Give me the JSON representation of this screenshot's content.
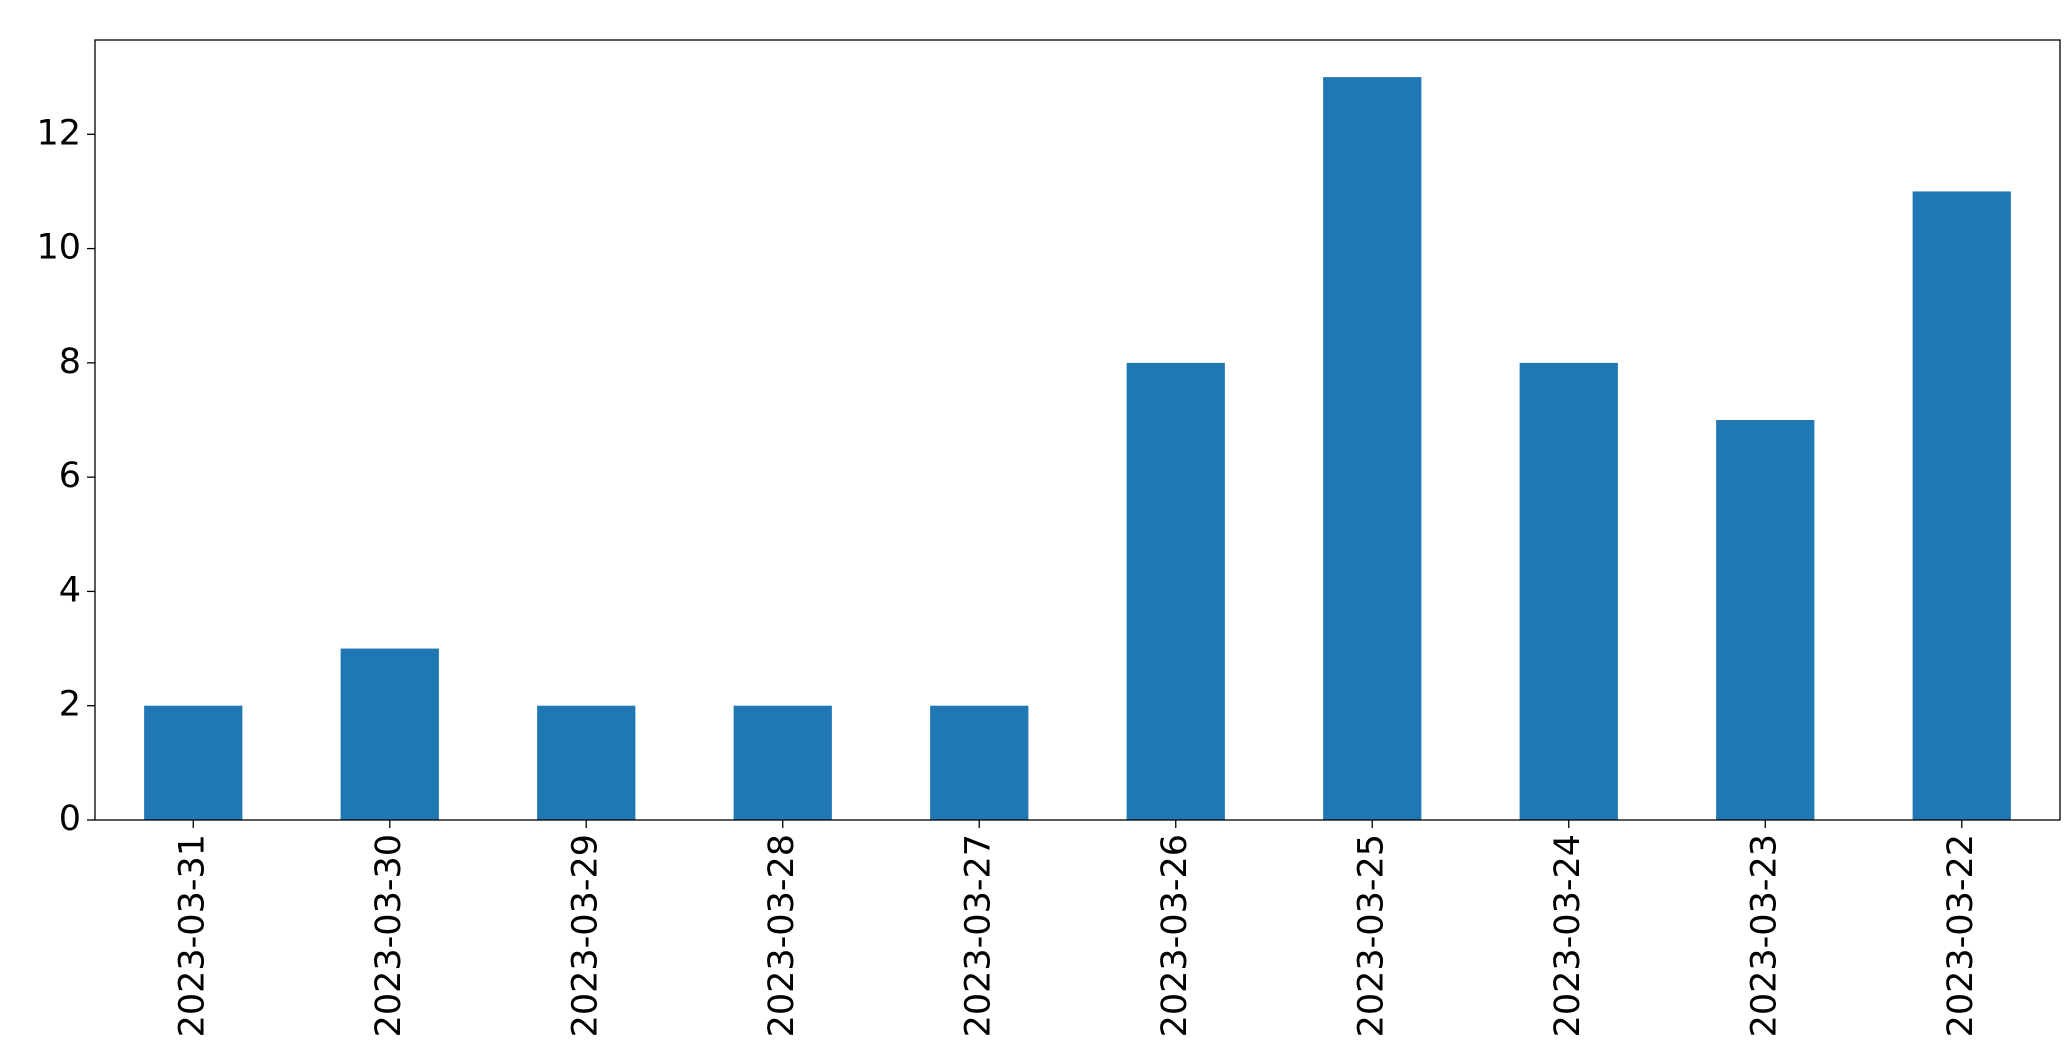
{
  "chart_data": {
    "type": "bar",
    "categories": [
      "2023-03-31",
      "2023-03-30",
      "2023-03-29",
      "2023-03-28",
      "2023-03-27",
      "2023-03-26",
      "2023-03-25",
      "2023-03-24",
      "2023-03-23",
      "2023-03-22"
    ],
    "values": [
      2,
      3,
      2,
      2,
      2,
      8,
      13,
      8,
      7,
      11
    ],
    "color": "#1f77b4",
    "ylim": [
      0,
      13.65
    ],
    "yticks": [
      0,
      2,
      4,
      6,
      8,
      10,
      12
    ],
    "grid": false
  }
}
